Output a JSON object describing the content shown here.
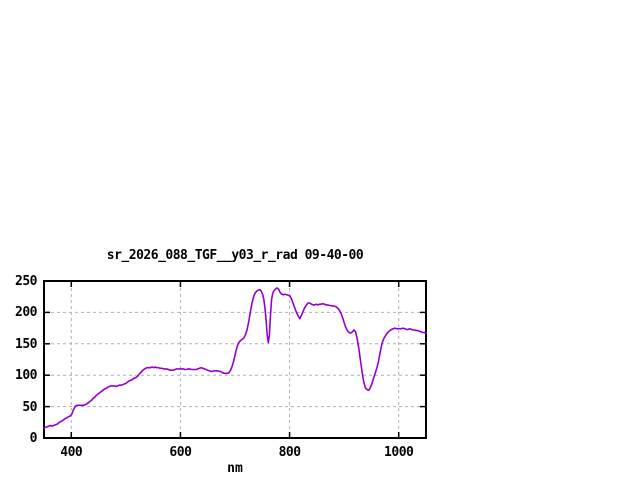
{
  "window": {
    "background": "#ffffff"
  },
  "chart_data": {
    "type": "line",
    "title": "sr_2026_088_TGF__y03_r_rad 09-40-00",
    "xlabel": "nm",
    "ylabel": "",
    "xlim": [
      350,
      1050
    ],
    "ylim": [
      0,
      250
    ],
    "xticks": [
      "400",
      "600",
      "800",
      "1000"
    ],
    "xtick_values": [
      400,
      600,
      800,
      1000
    ],
    "yticks": [
      "0",
      "50",
      "100",
      "150",
      "200",
      "250"
    ],
    "ytick_values": [
      0,
      50,
      100,
      150,
      200,
      250
    ],
    "grid": true,
    "grid_style": "dashed",
    "legend": false,
    "colors": {
      "line": "#9400d3",
      "grid": "#b0b0b0",
      "border": "#000000",
      "text": "#000000"
    },
    "series": [
      {
        "name": "sr_2026_088_TGF__y03_r_rad",
        "points": [
          [
            350,
            16
          ],
          [
            353,
            17
          ],
          [
            356,
            18
          ],
          [
            359,
            19
          ],
          [
            362,
            20
          ],
          [
            365,
            19
          ],
          [
            368,
            20
          ],
          [
            371,
            21
          ],
          [
            374,
            22
          ],
          [
            377,
            24
          ],
          [
            380,
            26
          ],
          [
            383,
            27
          ],
          [
            386,
            29
          ],
          [
            389,
            31
          ],
          [
            392,
            32
          ],
          [
            395,
            34
          ],
          [
            398,
            35
          ],
          [
            401,
            38
          ],
          [
            404,
            45
          ],
          [
            407,
            50
          ],
          [
            410,
            52
          ],
          [
            413,
            52
          ],
          [
            416,
            52
          ],
          [
            419,
            52
          ],
          [
            422,
            52
          ],
          [
            425,
            53
          ],
          [
            428,
            54
          ],
          [
            431,
            56
          ],
          [
            434,
            58
          ],
          [
            437,
            60
          ],
          [
            440,
            63
          ],
          [
            443,
            65
          ],
          [
            446,
            68
          ],
          [
            449,
            70
          ],
          [
            452,
            72
          ],
          [
            455,
            74
          ],
          [
            458,
            76
          ],
          [
            461,
            78
          ],
          [
            464,
            79
          ],
          [
            467,
            81
          ],
          [
            470,
            82
          ],
          [
            473,
            83
          ],
          [
            476,
            83
          ],
          [
            479,
            83
          ],
          [
            482,
            82
          ],
          [
            485,
            83
          ],
          [
            488,
            84
          ],
          [
            491,
            84
          ],
          [
            494,
            85
          ],
          [
            497,
            86
          ],
          [
            500,
            87
          ],
          [
            503,
            89
          ],
          [
            506,
            91
          ],
          [
            509,
            92
          ],
          [
            512,
            93
          ],
          [
            515,
            95
          ],
          [
            518,
            96
          ],
          [
            521,
            98
          ],
          [
            524,
            101
          ],
          [
            527,
            104
          ],
          [
            530,
            107
          ],
          [
            533,
            109
          ],
          [
            536,
            111
          ],
          [
            539,
            112
          ],
          [
            542,
            112
          ],
          [
            545,
            112
          ],
          [
            548,
            113
          ],
          [
            551,
            112
          ],
          [
            554,
            113
          ],
          [
            557,
            112
          ],
          [
            560,
            112
          ],
          [
            563,
            111
          ],
          [
            566,
            111
          ],
          [
            569,
            110
          ],
          [
            572,
            110
          ],
          [
            575,
            110
          ],
          [
            578,
            109
          ],
          [
            581,
            108
          ],
          [
            584,
            108
          ],
          [
            587,
            108
          ],
          [
            590,
            109
          ],
          [
            593,
            110
          ],
          [
            596,
            110
          ],
          [
            599,
            110
          ],
          [
            602,
            110
          ],
          [
            605,
            110
          ],
          [
            608,
            109
          ],
          [
            611,
            109
          ],
          [
            614,
            110
          ],
          [
            617,
            110
          ],
          [
            620,
            109
          ],
          [
            623,
            109
          ],
          [
            626,
            109
          ],
          [
            629,
            109
          ],
          [
            632,
            110
          ],
          [
            635,
            111
          ],
          [
            638,
            112
          ],
          [
            641,
            111
          ],
          [
            644,
            110
          ],
          [
            647,
            109
          ],
          [
            650,
            108
          ],
          [
            653,
            107
          ],
          [
            656,
            106
          ],
          [
            659,
            106
          ],
          [
            662,
            107
          ],
          [
            665,
            107
          ],
          [
            668,
            107
          ],
          [
            671,
            106
          ],
          [
            674,
            106
          ],
          [
            677,
            104
          ],
          [
            680,
            103
          ],
          [
            683,
            103
          ],
          [
            686,
            103
          ],
          [
            689,
            104
          ],
          [
            692,
            108
          ],
          [
            695,
            115
          ],
          [
            698,
            124
          ],
          [
            701,
            135
          ],
          [
            704,
            146
          ],
          [
            707,
            152
          ],
          [
            710,
            155
          ],
          [
            713,
            157
          ],
          [
            716,
            159
          ],
          [
            719,
            164
          ],
          [
            722,
            172
          ],
          [
            725,
            184
          ],
          [
            728,
            200
          ],
          [
            731,
            214
          ],
          [
            734,
            225
          ],
          [
            737,
            231
          ],
          [
            740,
            234
          ],
          [
            742,
            235
          ],
          [
            744,
            236
          ],
          [
            746,
            236
          ],
          [
            748,
            234
          ],
          [
            751,
            228
          ],
          [
            753,
            220
          ],
          [
            755,
            206
          ],
          [
            757,
            188
          ],
          [
            759,
            164
          ],
          [
            761,
            152
          ],
          [
            763,
            164
          ],
          [
            765,
            196
          ],
          [
            767,
            221
          ],
          [
            769,
            230
          ],
          [
            771,
            234
          ],
          [
            774,
            237
          ],
          [
            777,
            239
          ],
          [
            780,
            237
          ],
          [
            783,
            231
          ],
          [
            786,
            229
          ],
          [
            789,
            228
          ],
          [
            792,
            229
          ],
          [
            795,
            228
          ],
          [
            798,
            227
          ],
          [
            801,
            226
          ],
          [
            804,
            220
          ],
          [
            807,
            213
          ],
          [
            810,
            206
          ],
          [
            813,
            199
          ],
          [
            816,
            194
          ],
          [
            819,
            190
          ],
          [
            822,
            196
          ],
          [
            825,
            202
          ],
          [
            828,
            208
          ],
          [
            831,
            212
          ],
          [
            834,
            215
          ],
          [
            837,
            215
          ],
          [
            840,
            213
          ],
          [
            843,
            212
          ],
          [
            846,
            212
          ],
          [
            849,
            213
          ],
          [
            852,
            212
          ],
          [
            855,
            213
          ],
          [
            858,
            213
          ],
          [
            861,
            214
          ],
          [
            864,
            213
          ],
          [
            867,
            212
          ],
          [
            870,
            212
          ],
          [
            873,
            211
          ],
          [
            876,
            211
          ],
          [
            879,
            210
          ],
          [
            882,
            210
          ],
          [
            885,
            209
          ],
          [
            888,
            207
          ],
          [
            891,
            204
          ],
          [
            894,
            199
          ],
          [
            897,
            192
          ],
          [
            900,
            184
          ],
          [
            903,
            176
          ],
          [
            906,
            171
          ],
          [
            909,
            168
          ],
          [
            912,
            167
          ],
          [
            915,
            169
          ],
          [
            918,
            172
          ],
          [
            921,
            169
          ],
          [
            924,
            158
          ],
          [
            927,
            142
          ],
          [
            930,
            123
          ],
          [
            933,
            104
          ],
          [
            936,
            89
          ],
          [
            939,
            80
          ],
          [
            942,
            77
          ],
          [
            945,
            76
          ],
          [
            948,
            80
          ],
          [
            951,
            87
          ],
          [
            954,
            95
          ],
          [
            957,
            103
          ],
          [
            960,
            112
          ],
          [
            963,
            122
          ],
          [
            966,
            137
          ],
          [
            969,
            149
          ],
          [
            972,
            157
          ],
          [
            975,
            162
          ],
          [
            978,
            166
          ],
          [
            981,
            169
          ],
          [
            984,
            171
          ],
          [
            987,
            173
          ],
          [
            990,
            174
          ],
          [
            993,
            175
          ],
          [
            996,
            174
          ],
          [
            999,
            174
          ],
          [
            1002,
            174
          ],
          [
            1005,
            174
          ],
          [
            1008,
            175
          ],
          [
            1011,
            174
          ],
          [
            1014,
            173
          ],
          [
            1017,
            173
          ],
          [
            1020,
            174
          ],
          [
            1023,
            173
          ],
          [
            1026,
            172
          ],
          [
            1029,
            172
          ],
          [
            1032,
            171
          ],
          [
            1035,
            171
          ],
          [
            1038,
            170
          ],
          [
            1041,
            169
          ],
          [
            1044,
            168
          ],
          [
            1047,
            168
          ],
          [
            1050,
            167
          ]
        ]
      }
    ]
  }
}
